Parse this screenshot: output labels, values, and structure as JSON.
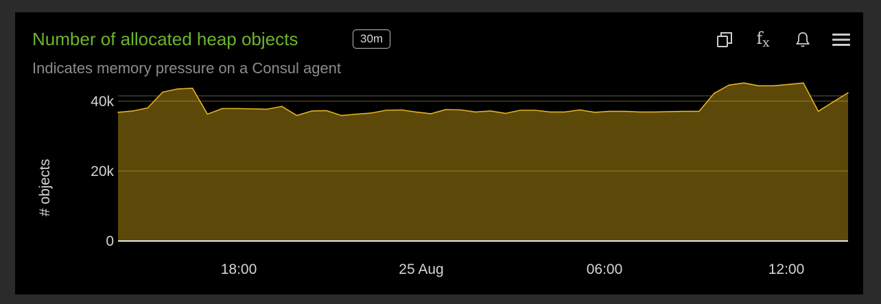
{
  "panel": {
    "title": "Number of allocated heap objects",
    "badge": "30m",
    "subtitle": "Indicates memory pressure on a Consul agent",
    "title_color": "#6cb52d"
  },
  "toolbar": {
    "icons": [
      "copy-icon",
      "fx-icon",
      "bell-icon",
      "menu-icon"
    ],
    "fx_label": "f",
    "fx_sub": "x"
  },
  "chart_data": {
    "type": "area",
    "ylabel": "# objects",
    "ylim": [
      0,
      42500
    ],
    "yticks": [
      0,
      20000,
      40000
    ],
    "yticklabels": [
      "0",
      "20k",
      "40k"
    ],
    "xticklabels": [
      "18:00",
      "25 Aug",
      "06:00",
      "12:00"
    ],
    "grid": true,
    "series_color": "#e6b421",
    "fill_color": "#5c4808",
    "series": [
      {
        "values": [
          36800,
          37200,
          38100,
          42600,
          43500,
          43700,
          36300,
          37900,
          37900,
          37800,
          37700,
          38500,
          35900,
          37200,
          37300,
          35900,
          36300,
          36600,
          37400,
          37500,
          36900,
          36400,
          37600,
          37500,
          36900,
          37200,
          36500,
          37400,
          37400,
          36900,
          36900,
          37500,
          36800,
          37100,
          37100,
          36900,
          36900,
          37000,
          37100,
          37100,
          42200,
          44600,
          45200,
          44400,
          44400,
          44800,
          45200,
          37100,
          39800,
          42400
        ]
      }
    ]
  }
}
